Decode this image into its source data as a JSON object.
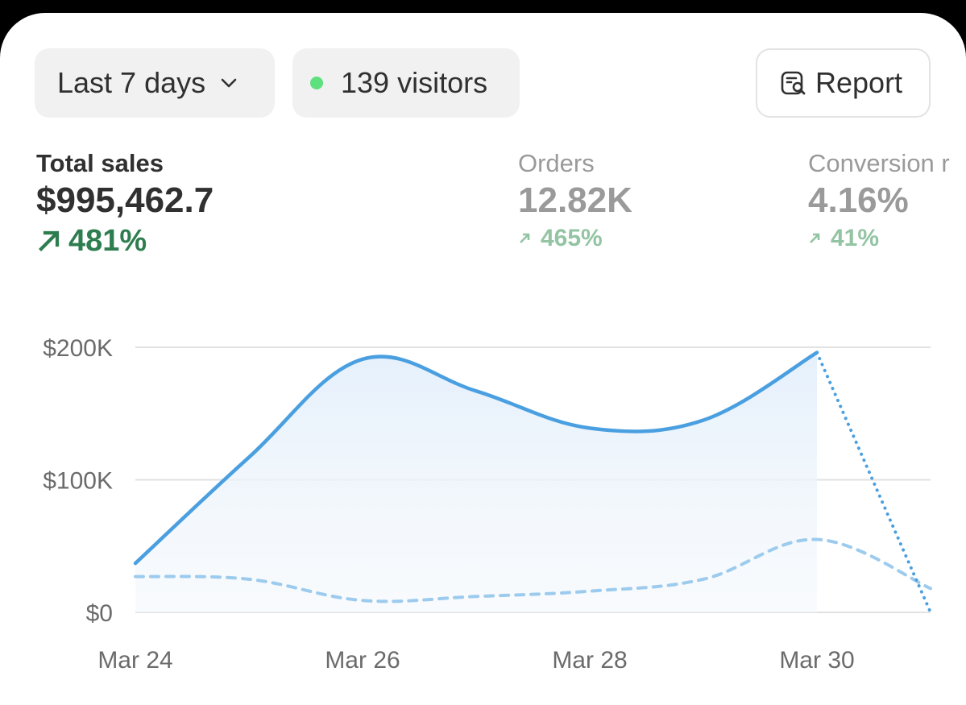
{
  "toolbar": {
    "range_label": "Last 7 days",
    "visitors_label": "139 visitors",
    "visitors_dot_color": "#5ee07e",
    "report_label": "Report",
    "icons": {
      "range": "chevron-down-icon",
      "report": "report-search-icon"
    }
  },
  "metrics": [
    {
      "label": "Total sales",
      "value": "$995,462.7",
      "change": "481%",
      "active": true
    },
    {
      "label": "Orders",
      "value": "12.82K",
      "change": "465%",
      "active": false
    },
    {
      "label": "Conversion r",
      "value": "4.16%",
      "change": "41%",
      "active": false
    }
  ],
  "colors": {
    "primary_line": "#4a9fe0",
    "comparison_line": "#9ccbee",
    "positive": "#2e7d4f",
    "positive_muted": "#93c4a3"
  },
  "chart_data": {
    "type": "area",
    "x_ticks": [
      "Mar 24",
      "Mar 26",
      "Mar 28",
      "Mar 30"
    ],
    "y_ticks": [
      "$0",
      "$100K",
      "$200K"
    ],
    "ylim": [
      0,
      200000
    ],
    "grid": true,
    "series": [
      {
        "style": "solid-with-dotted-projection",
        "x": [
          "Mar 24",
          "Mar 25",
          "Mar 26",
          "Mar 27",
          "Mar 28",
          "Mar 29",
          "Mar 30",
          "Mar 31"
        ],
        "values": [
          37000,
          117000,
          191000,
          167000,
          139000,
          145000,
          196000,
          0
        ],
        "projected_from_index": 6
      },
      {
        "style": "dashed",
        "x": [
          "Mar 24",
          "Mar 25",
          "Mar 26",
          "Mar 27",
          "Mar 28",
          "Mar 29",
          "Mar 30",
          "Mar 31"
        ],
        "values": [
          27000,
          25000,
          9000,
          12000,
          16000,
          25000,
          55000,
          18000
        ]
      }
    ]
  }
}
